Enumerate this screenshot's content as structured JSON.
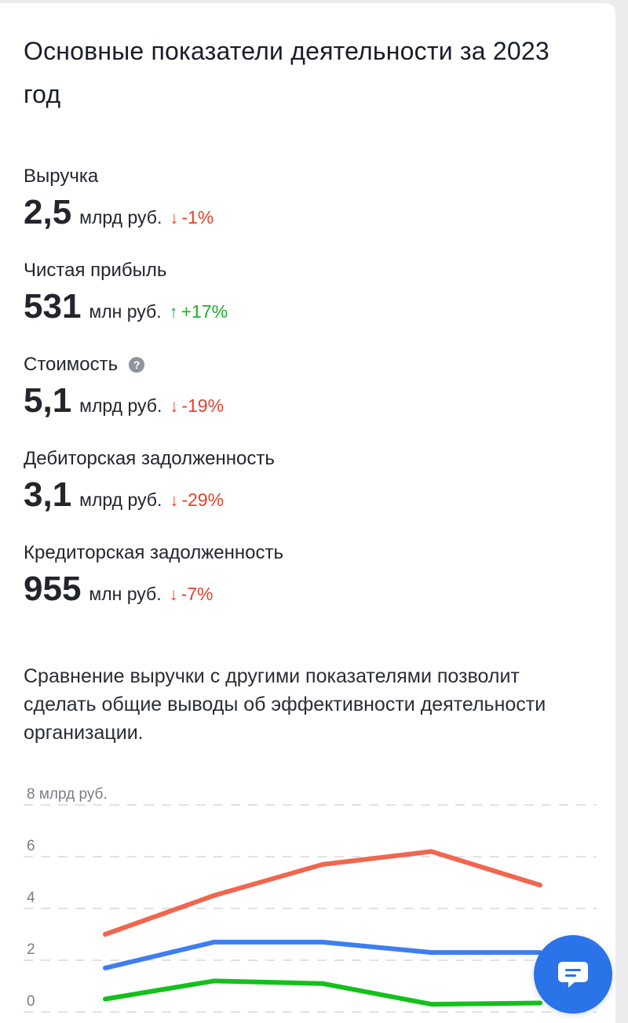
{
  "page": {
    "title": "Основные показатели деятельности за 2023 год",
    "description": "Сравнение выручки с другими показателями позволит сделать общие выводы об эффективности деятельности организации."
  },
  "metrics": [
    {
      "label": "Выручка",
      "value": "2,5",
      "unit": "млрд руб.",
      "change": "-1%",
      "direction": "down",
      "help": false
    },
    {
      "label": "Чистая прибыль",
      "value": "531",
      "unit": "млн руб.",
      "change": "+17%",
      "direction": "up",
      "help": false
    },
    {
      "label": "Стоимость",
      "value": "5,1",
      "unit": "млрд руб.",
      "change": "-19%",
      "direction": "down",
      "help": true
    },
    {
      "label": "Дебиторская задолженность",
      "value": "3,1",
      "unit": "млрд руб.",
      "change": "-29%",
      "direction": "down",
      "help": false
    },
    {
      "label": "Кредиторская задолженность",
      "value": "955",
      "unit": "млн руб.",
      "change": "-7%",
      "direction": "down",
      "help": false
    }
  ],
  "icons": {
    "help": "question-circle-icon",
    "down": "arrow-down-icon",
    "up": "arrow-up-icon",
    "chat": "chat-bubble-icon",
    "help_glyph": "?",
    "down_glyph": "↓",
    "up_glyph": "↑"
  },
  "colors": {
    "down": "#e6402a",
    "up": "#1eaf2c",
    "accent": "#2a73e8",
    "grid": "#d8d8dc"
  },
  "chart_data": {
    "type": "line",
    "title": "",
    "xlabel": "",
    "ylabel": "",
    "unit_label": "8 млрд руб.",
    "ylim": [
      0,
      8
    ],
    "y_ticks": [
      "0",
      "2",
      "4",
      "6"
    ],
    "x": [
      0,
      1,
      2,
      3,
      4
    ],
    "grid": true,
    "series": [
      {
        "color": "#f0664f",
        "values": [
          3.0,
          4.5,
          5.7,
          6.2,
          4.9
        ]
      },
      {
        "color": "#3f7df0",
        "values": [
          1.7,
          2.7,
          2.7,
          2.3,
          2.3
        ]
      },
      {
        "color": "#14c01b",
        "values": [
          0.5,
          1.2,
          1.1,
          0.3,
          0.35
        ]
      }
    ]
  }
}
